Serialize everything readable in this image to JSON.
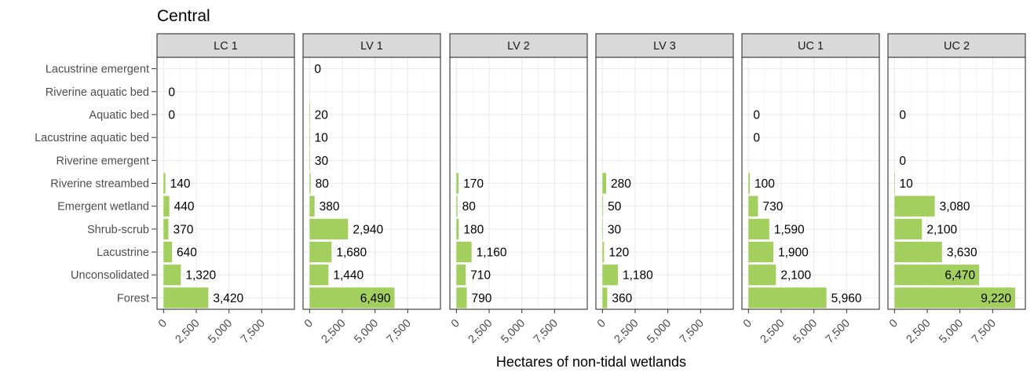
{
  "chart_data": {
    "type": "bar",
    "orientation": "horizontal",
    "title": "Central",
    "xlabel": "Hectares of non-tidal wetlands",
    "ylabel": "",
    "categories": [
      "Lacustrine emergent",
      "Riverine aquatic bed",
      "Aquatic bed",
      "Lacustrine aquatic bed",
      "Riverine emergent",
      "Riverine streambed",
      "Emergent wetland",
      "Shrub-scrub",
      "Lacustrine",
      "Unconsolidated",
      "Forest"
    ],
    "xlim": [
      -500,
      10000
    ],
    "xticks": [
      0,
      2500,
      5000,
      7500
    ],
    "xtick_labels": [
      "0",
      "2,500",
      "5,000",
      "7,500"
    ],
    "grid": true,
    "bar_color": "#a3cf5e",
    "strip_color": "#d9d9d9",
    "panels": [
      {
        "name": "LC 1",
        "values": [
          null,
          0,
          0,
          null,
          null,
          140,
          440,
          370,
          640,
          1320,
          3420
        ],
        "labels": [
          "",
          "0",
          "0",
          "",
          "",
          "140",
          "440",
          "370",
          "640",
          "1,320",
          "3,420"
        ]
      },
      {
        "name": "LV 1",
        "values": [
          0,
          null,
          20,
          10,
          30,
          80,
          380,
          2940,
          1680,
          1440,
          6490
        ],
        "labels": [
          "0",
          "",
          "20",
          "10",
          "30",
          "80",
          "380",
          "2,940",
          "1,680",
          "1,440",
          "6,490"
        ]
      },
      {
        "name": "LV 2",
        "values": [
          null,
          null,
          null,
          null,
          null,
          170,
          80,
          180,
          1160,
          710,
          790
        ],
        "labels": [
          "",
          "",
          "",
          "",
          "",
          "170",
          "80",
          "180",
          "1,160",
          "710",
          "790"
        ]
      },
      {
        "name": "LV 3",
        "values": [
          null,
          null,
          null,
          null,
          null,
          280,
          50,
          30,
          120,
          1180,
          360
        ],
        "labels": [
          "",
          "",
          "",
          "",
          "",
          "280",
          "50",
          "30",
          "120",
          "1,180",
          "360"
        ]
      },
      {
        "name": "UC 1",
        "values": [
          null,
          null,
          0,
          0,
          null,
          100,
          730,
          1590,
          1900,
          2100,
          5960
        ],
        "labels": [
          "",
          "",
          "0",
          "0",
          "",
          "100",
          "730",
          "1,590",
          "1,900",
          "2,100",
          "5,960"
        ]
      },
      {
        "name": "UC 2",
        "values": [
          null,
          null,
          0,
          null,
          0,
          10,
          3080,
          2100,
          3630,
          6470,
          9220
        ],
        "labels": [
          "",
          "",
          "0",
          "",
          "0",
          "10",
          "3,080",
          "2,100",
          "3,630",
          "6,470",
          "9,220"
        ]
      }
    ]
  }
}
